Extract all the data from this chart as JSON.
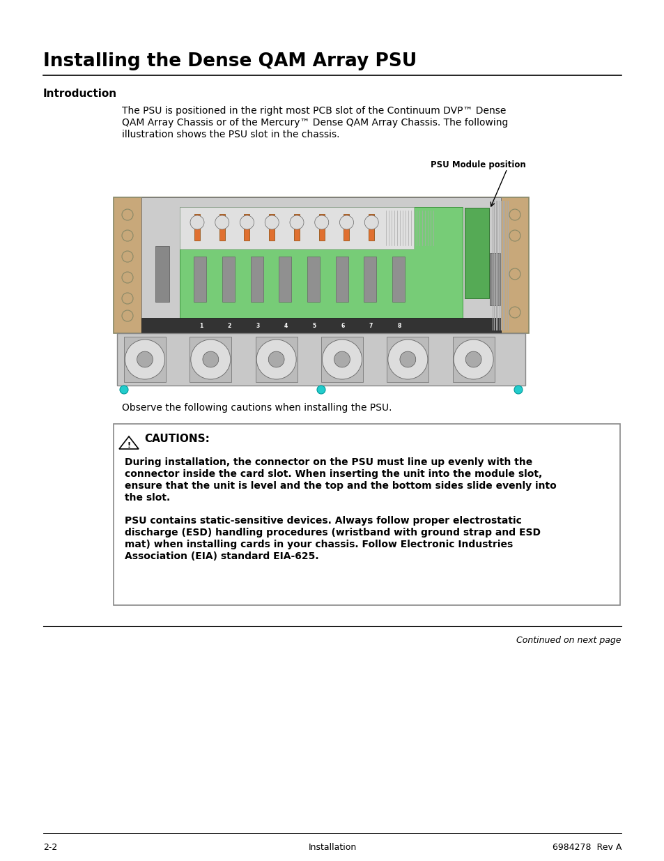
{
  "title": "Installing the Dense QAM Array PSU",
  "section_label": "Introduction",
  "body_text_line1": "The PSU is positioned in the right most PCB slot of the Continuum DVP™ Dense",
  "body_text_line2": "QAM Array Chassis or of the Mercury™ Dense QAM Array Chassis. The following",
  "body_text_line3": "illustration shows the PSU slot in the chassis.",
  "psu_label": "PSU Module position",
  "observe_text": "Observe the following cautions when installing the PSU.",
  "caution_header": "CAUTIONS:",
  "caution_para1_lines": [
    "During installation, the connector on the PSU must line up evenly with the",
    "connector inside the card slot. When inserting the unit into the module slot,",
    "ensure that the unit is level and the top and the bottom sides slide evenly into",
    "the slot."
  ],
  "caution_para2_lines": [
    "PSU contains static-sensitive devices. Always follow proper electrostatic",
    "discharge (ESD) handling procedures (wristband with ground strap and ESD",
    "mat) when installing cards in your chassis. Follow Electronic Industries",
    "Association (EIA) standard EIA-625."
  ],
  "footer_left": "2-2",
  "footer_center": "Installation",
  "footer_right": "6984278  Rev A",
  "footer_note": "Continued on next page",
  "bg_color": "#ffffff",
  "text_color": "#000000",
  "chassis_beige": "#C8A87A",
  "chassis_gray": "#BEBEBE",
  "chassis_green": "#77CC77",
  "chassis_darkgray": "#888888",
  "orange_cable": "#E07030",
  "slot_gray": "#999999",
  "fan_bg": "#D0D0D0",
  "caution_border": "#888888"
}
